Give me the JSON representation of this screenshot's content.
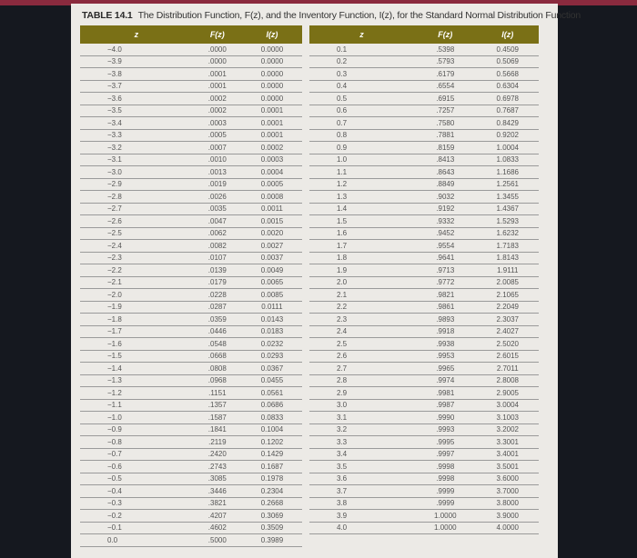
{
  "title_label": "TABLE 14.1",
  "title_text": "The Distribution Function, F(z), and the Inventory Function, I(z), for the Standard Normal Distribution Function",
  "headers": [
    "z",
    "F(z)",
    "I(z)"
  ],
  "header_color": "#7a7016",
  "left_rows": [
    [
      "−4.0",
      ".0000",
      "0.0000"
    ],
    [
      "−3.9",
      ".0000",
      "0.0000"
    ],
    [
      "−3.8",
      ".0001",
      "0.0000"
    ],
    [
      "−3.7",
      ".0001",
      "0.0000"
    ],
    [
      "−3.6",
      ".0002",
      "0.0000"
    ],
    [
      "−3.5",
      ".0002",
      "0.0001"
    ],
    [
      "−3.4",
      ".0003",
      "0.0001"
    ],
    [
      "−3.3",
      ".0005",
      "0.0001"
    ],
    [
      "−3.2",
      ".0007",
      "0.0002"
    ],
    [
      "−3.1",
      ".0010",
      "0.0003"
    ],
    [
      "−3.0",
      ".0013",
      "0.0004"
    ],
    [
      "−2.9",
      ".0019",
      "0.0005"
    ],
    [
      "−2.8",
      ".0026",
      "0.0008"
    ],
    [
      "−2.7",
      ".0035",
      "0.0011"
    ],
    [
      "−2.6",
      ".0047",
      "0.0015"
    ],
    [
      "−2.5",
      ".0062",
      "0.0020"
    ],
    [
      "−2.4",
      ".0082",
      "0.0027"
    ],
    [
      "−2.3",
      ".0107",
      "0.0037"
    ],
    [
      "−2.2",
      ".0139",
      "0.0049"
    ],
    [
      "−2.1",
      ".0179",
      "0.0065"
    ],
    [
      "−2.0",
      ".0228",
      "0.0085"
    ],
    [
      "−1.9",
      ".0287",
      "0.0111"
    ],
    [
      "−1.8",
      ".0359",
      "0.0143"
    ],
    [
      "−1.7",
      ".0446",
      "0.0183"
    ],
    [
      "−1.6",
      ".0548",
      "0.0232"
    ],
    [
      "−1.5",
      ".0668",
      "0.0293"
    ],
    [
      "−1.4",
      ".0808",
      "0.0367"
    ],
    [
      "−1.3",
      ".0968",
      "0.0455"
    ],
    [
      "−1.2",
      ".1151",
      "0.0561"
    ],
    [
      "−1.1",
      ".1357",
      "0.0686"
    ],
    [
      "−1.0",
      ".1587",
      "0.0833"
    ],
    [
      "−0.9",
      ".1841",
      "0.1004"
    ],
    [
      "−0.8",
      ".2119",
      "0.1202"
    ],
    [
      "−0.7",
      ".2420",
      "0.1429"
    ],
    [
      "−0.6",
      ".2743",
      "0.1687"
    ],
    [
      "−0.5",
      ".3085",
      "0.1978"
    ],
    [
      "−0.4",
      ".3446",
      "0.2304"
    ],
    [
      "−0.3",
      ".3821",
      "0.2668"
    ],
    [
      "−0.2",
      ".4207",
      "0.3069"
    ],
    [
      "−0.1",
      ".4602",
      "0.3509"
    ],
    [
      "0.0",
      ".5000",
      "0.3989"
    ]
  ],
  "right_rows": [
    [
      "0.1",
      ".5398",
      "0.4509"
    ],
    [
      "0.2",
      ".5793",
      "0.5069"
    ],
    [
      "0.3",
      ".6179",
      "0.5668"
    ],
    [
      "0.4",
      ".6554",
      "0.6304"
    ],
    [
      "0.5",
      ".6915",
      "0.6978"
    ],
    [
      "0.6",
      ".7257",
      "0.7687"
    ],
    [
      "0.7",
      ".7580",
      "0.8429"
    ],
    [
      "0.8",
      ".7881",
      "0.9202"
    ],
    [
      "0.9",
      ".8159",
      "1.0004"
    ],
    [
      "1.0",
      ".8413",
      "1.0833"
    ],
    [
      "1.1",
      ".8643",
      "1.1686"
    ],
    [
      "1.2",
      ".8849",
      "1.2561"
    ],
    [
      "1.3",
      ".9032",
      "1.3455"
    ],
    [
      "1.4",
      ".9192",
      "1.4367"
    ],
    [
      "1.5",
      ".9332",
      "1.5293"
    ],
    [
      "1.6",
      ".9452",
      "1.6232"
    ],
    [
      "1.7",
      ".9554",
      "1.7183"
    ],
    [
      "1.8",
      ".9641",
      "1.8143"
    ],
    [
      "1.9",
      ".9713",
      "1.9111"
    ],
    [
      "2.0",
      ".9772",
      "2.0085"
    ],
    [
      "2.1",
      ".9821",
      "2.1065"
    ],
    [
      "2.2",
      ".9861",
      "2.2049"
    ],
    [
      "2.3",
      ".9893",
      "2.3037"
    ],
    [
      "2.4",
      ".9918",
      "2.4027"
    ],
    [
      "2.5",
      ".9938",
      "2.5020"
    ],
    [
      "2.6",
      ".9953",
      "2.6015"
    ],
    [
      "2.7",
      ".9965",
      "2.7011"
    ],
    [
      "2.8",
      ".9974",
      "2.8008"
    ],
    [
      "2.9",
      ".9981",
      "2.9005"
    ],
    [
      "3.0",
      ".9987",
      "3.0004"
    ],
    [
      "3.1",
      ".9990",
      "3.1003"
    ],
    [
      "3.2",
      ".9993",
      "3.2002"
    ],
    [
      "3.3",
      ".9995",
      "3.3001"
    ],
    [
      "3.4",
      ".9997",
      "3.4001"
    ],
    [
      "3.5",
      ".9998",
      "3.5001"
    ],
    [
      "3.6",
      ".9998",
      "3.6000"
    ],
    [
      "3.7",
      ".9999",
      "3.7000"
    ],
    [
      "3.8",
      ".9999",
      "3.8000"
    ],
    [
      "3.9",
      "1.0000",
      "3.9000"
    ],
    [
      "4.0",
      "1.0000",
      "4.0000"
    ]
  ]
}
